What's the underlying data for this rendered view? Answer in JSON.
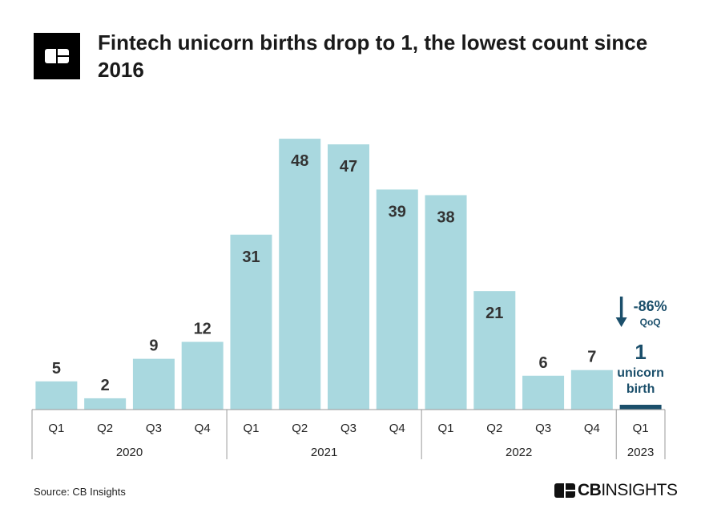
{
  "header": {
    "title": "Fintech unicorn births drop to 1, the lowest count since 2016",
    "logo": "CB Insights logo mark"
  },
  "chart_data": {
    "type": "bar",
    "title": "Fintech unicorn births drop to 1, the lowest count since 2016",
    "categories": [
      "Q1",
      "Q2",
      "Q3",
      "Q4",
      "Q1",
      "Q2",
      "Q3",
      "Q4",
      "Q1",
      "Q2",
      "Q3",
      "Q4",
      "Q1"
    ],
    "years": [
      {
        "label": "2020",
        "count": 4
      },
      {
        "label": "2021",
        "count": 4
      },
      {
        "label": "2022",
        "count": 4
      },
      {
        "label": "2023",
        "count": 1
      }
    ],
    "values": [
      5,
      2,
      9,
      12,
      31,
      48,
      47,
      39,
      38,
      21,
      6,
      7,
      1
    ],
    "bar_color": "#a9d8df",
    "highlight_color": "#1b4f6b",
    "highlight_index": 12,
    "annotation": {
      "change": "-86%",
      "change_label": "QoQ",
      "value": "1",
      "value_label_1": "unicorn",
      "value_label_2": "birth",
      "arrow": "arrow-down-icon"
    },
    "grid": false,
    "ylim": [
      0,
      50
    ]
  },
  "footer": {
    "source": "Source: CB Insights",
    "brand_bold": "CB",
    "brand_light": "INSIGHTS"
  }
}
